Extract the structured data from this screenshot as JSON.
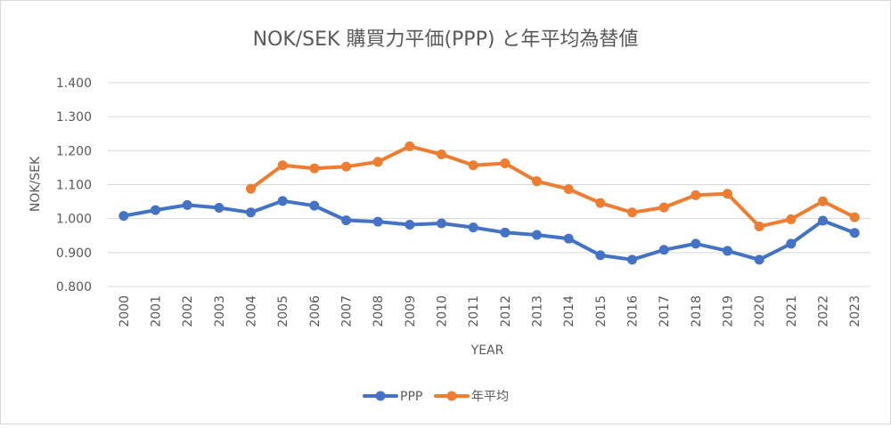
{
  "chart_data": {
    "type": "line",
    "title": "NOK/SEK 購買力平価(PPP) と年平均為替値",
    "xlabel": "YEAR",
    "ylabel": "NOK/SEK",
    "categories": [
      "2000",
      "2001",
      "2002",
      "2003",
      "2004",
      "2005",
      "2006",
      "2007",
      "2008",
      "2009",
      "2010",
      "2011",
      "2012",
      "2013",
      "2014",
      "2015",
      "2016",
      "2017",
      "2018",
      "2019",
      "2020",
      "2021",
      "2022",
      "2023"
    ],
    "ylim": [
      0.8,
      1.4
    ],
    "yticks": [
      "0.800",
      "0.900",
      "1.000",
      "1.100",
      "1.200",
      "1.300",
      "1.400"
    ],
    "grid": true,
    "legend_position": "bottom",
    "series": [
      {
        "name": "PPP",
        "color": "#4472c4",
        "values": [
          1.008,
          1.025,
          1.04,
          1.032,
          1.018,
          1.052,
          1.038,
          0.995,
          0.991,
          0.982,
          0.986,
          0.974,
          0.959,
          0.952,
          0.941,
          0.892,
          0.879,
          0.908,
          0.926,
          0.905,
          0.879,
          0.926,
          0.994,
          0.958
        ]
      },
      {
        "name": "年平均",
        "color": "#ed7d31",
        "values": [
          null,
          null,
          null,
          null,
          1.088,
          1.157,
          1.148,
          1.153,
          1.167,
          1.213,
          1.189,
          1.157,
          1.163,
          1.11,
          1.087,
          1.046,
          1.018,
          1.033,
          1.069,
          1.073,
          0.977,
          0.998,
          1.051,
          1.004
        ]
      }
    ]
  }
}
